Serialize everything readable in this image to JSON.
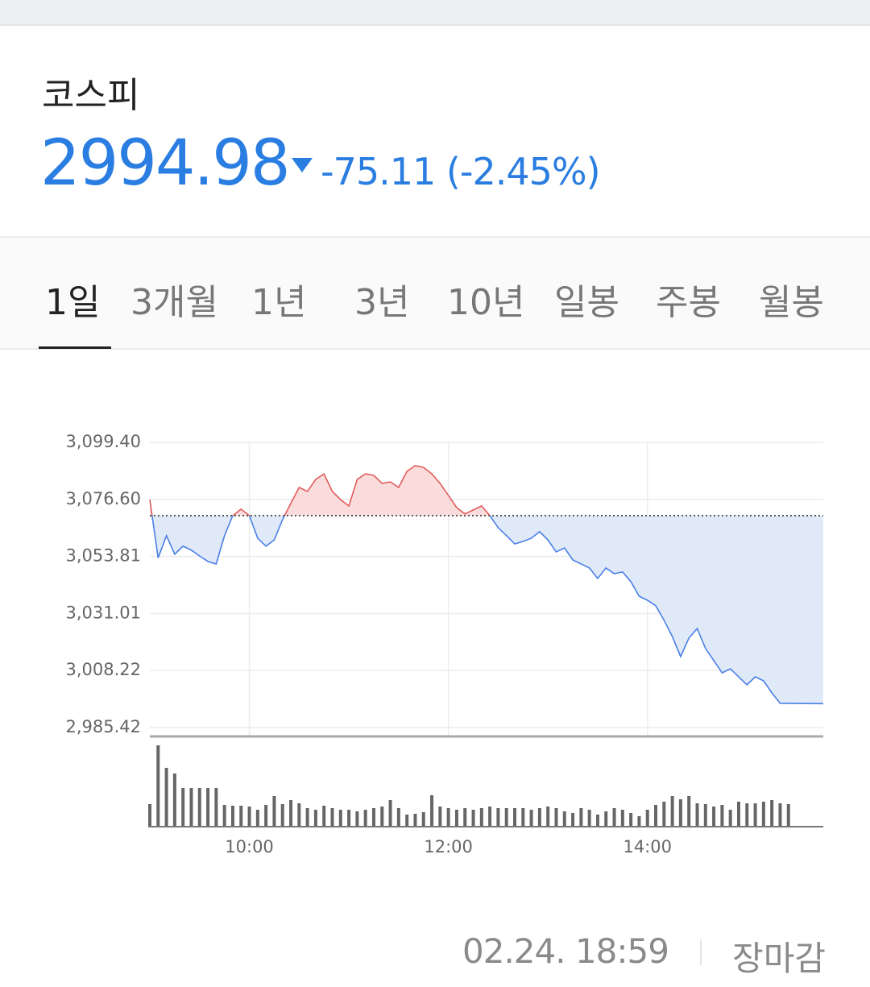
{
  "header": {
    "name": "코스피",
    "price": "2994.98",
    "change": "-75.11 (-2.45%)"
  },
  "tabs": {
    "items": [
      "1일",
      "3개월",
      "1년",
      "3년",
      "10년",
      "일봉",
      "주봉",
      "월봉"
    ],
    "active": 0
  },
  "chart_data": {
    "type": "line",
    "x": [
      540,
      545,
      550,
      555,
      560,
      565,
      570,
      575,
      580,
      585,
      590,
      595,
      600,
      605,
      610,
      615,
      620,
      625,
      630,
      635,
      640,
      645,
      650,
      655,
      660,
      665,
      670,
      675,
      680,
      685,
      690,
      695,
      700,
      705,
      710,
      715,
      720,
      725,
      730,
      735,
      740,
      745,
      750,
      755,
      760,
      765,
      770,
      775,
      780,
      785,
      790,
      795,
      800,
      805,
      810,
      815,
      820,
      825,
      830,
      835,
      840,
      845,
      850,
      855,
      860,
      865,
      870,
      875,
      880,
      885,
      890,
      895,
      900,
      905,
      910,
      915,
      920,
      946
    ],
    "values": [
      3076.5,
      3053.2,
      3062.1,
      3054.7,
      3057.9,
      3056.3,
      3054.0,
      3051.8,
      3050.8,
      3062.1,
      3070.1,
      3072.7,
      3070.1,
      3061.1,
      3057.9,
      3060.4,
      3068.5,
      3075.0,
      3081.4,
      3079.8,
      3084.6,
      3086.8,
      3079.8,
      3076.5,
      3074.0,
      3084.6,
      3086.8,
      3086.2,
      3083.0,
      3083.6,
      3081.4,
      3087.8,
      3090.1,
      3089.4,
      3086.8,
      3083.0,
      3078.2,
      3073.3,
      3070.8,
      3072.4,
      3074.0,
      3070.1,
      3065.3,
      3062.1,
      3058.8,
      3059.8,
      3061.1,
      3063.7,
      3060.4,
      3055.6,
      3057.2,
      3052.4,
      3050.8,
      3049.2,
      3045.0,
      3049.2,
      3046.9,
      3047.6,
      3043.7,
      3037.9,
      3036.3,
      3034.1,
      3028.3,
      3021.8,
      3013.8,
      3021.2,
      3025.0,
      3017.0,
      3012.2,
      3007.3,
      3008.9,
      3005.7,
      3002.5,
      3005.7,
      3004.1,
      2999.3,
      2995.1,
      2994.98
    ],
    "baseline": 3070.09,
    "color_up": "#e25c5c",
    "color_down": "#4a7fe6",
    "fill_up": "#fbdcdc",
    "fill_down": "#dfe9f8",
    "xlim": [
      540,
      946
    ],
    "xticks": [
      {
        "value": 600,
        "label": "10:00"
      },
      {
        "value": 720,
        "label": "12:00"
      },
      {
        "value": 840,
        "label": "14:00"
      }
    ],
    "ylim": [
      2982.2,
      3099.4
    ],
    "yticks": [
      {
        "value": 2985.42,
        "label": "2,985.42"
      },
      {
        "value": 3008.22,
        "label": "3,008.22"
      },
      {
        "value": 3031.01,
        "label": "3,031.01"
      },
      {
        "value": 3053.81,
        "label": "3,053.81"
      },
      {
        "value": 3076.6,
        "label": "3,076.60"
      },
      {
        "value": 3099.4,
        "label": "3,099.40"
      }
    ],
    "grid": true,
    "volume": {
      "type": "bar",
      "color": "#666666",
      "ylim": [
        0,
        100
      ],
      "x": [
        540,
        545,
        550,
        555,
        560,
        565,
        570,
        575,
        580,
        585,
        590,
        595,
        600,
        605,
        610,
        615,
        620,
        625,
        630,
        635,
        640,
        645,
        650,
        655,
        660,
        665,
        670,
        675,
        680,
        685,
        690,
        695,
        700,
        705,
        710,
        715,
        720,
        725,
        730,
        735,
        740,
        745,
        750,
        755,
        760,
        765,
        770,
        775,
        780,
        785,
        790,
        795,
        800,
        805,
        810,
        815,
        820,
        825,
        830,
        835,
        840,
        845,
        850,
        855,
        860,
        865,
        870,
        875,
        880,
        885,
        890,
        895,
        900,
        905,
        910,
        915,
        920,
        925
      ],
      "values": [
        27,
        100,
        72,
        65,
        47,
        47,
        47,
        47,
        47,
        26,
        25,
        25,
        24,
        20,
        26,
        37,
        27,
        32,
        28,
        22,
        20,
        25,
        22,
        20,
        20,
        18,
        20,
        22,
        24,
        32,
        22,
        14,
        15,
        17,
        38,
        24,
        22,
        20,
        22,
        20,
        22,
        24,
        22,
        22,
        22,
        22,
        20,
        22,
        24,
        22,
        18,
        16,
        22,
        20,
        14,
        18,
        22,
        20,
        16,
        12,
        20,
        26,
        30,
        37,
        33,
        37,
        28,
        27,
        24,
        26,
        20,
        30,
        28,
        28,
        30,
        32,
        28,
        27
      ]
    }
  },
  "footer": {
    "time": "02.24. 18:59",
    "status": "장마감"
  }
}
